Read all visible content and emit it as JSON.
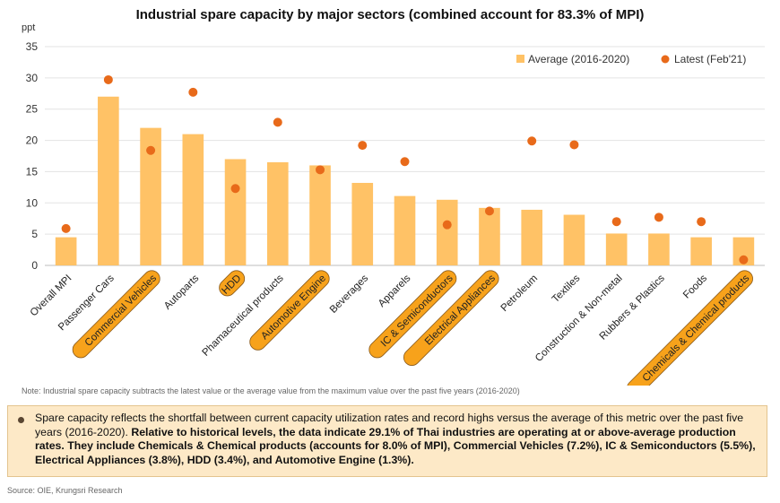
{
  "chart_data": {
    "type": "bar",
    "title": "Industrial spare capacity by major sectors (combined account for 83.3% of MPI)",
    "ylabel": "ppt",
    "ylim": [
      0,
      35
    ],
    "yticks": [
      0,
      5,
      10,
      15,
      20,
      25,
      30,
      35
    ],
    "legend_position": "top-right",
    "categories": [
      "Overall MPI",
      "Passenger Cars",
      "Commercial Vehicles",
      "Autoparts",
      "HDD",
      "Phamaceutical products",
      "Automotive Engine",
      "Beverages",
      "Apparels",
      "IC & Semiconductors",
      "Electrical Appliances",
      "Petroleum",
      "Textiles",
      "Construction & Non-metal",
      "Rubbers & Plastics",
      "Foods",
      "Chemicals & Chemical products"
    ],
    "highlighted": [
      false,
      false,
      true,
      false,
      true,
      false,
      true,
      false,
      false,
      true,
      true,
      false,
      false,
      false,
      false,
      false,
      true
    ],
    "series": [
      {
        "name": "Average (2016-2020)",
        "type": "bar",
        "color": "#ffc266",
        "values": [
          4.5,
          27.0,
          22.0,
          21.0,
          17.0,
          16.5,
          16.0,
          13.2,
          11.1,
          10.5,
          9.2,
          8.9,
          8.1,
          5.1,
          5.1,
          4.5,
          4.5
        ]
      },
      {
        "name": "Latest (Feb'21)",
        "type": "scatter",
        "color": "#e86a1a",
        "values": [
          5.9,
          29.7,
          18.4,
          27.7,
          12.3,
          22.9,
          15.3,
          19.2,
          16.6,
          6.5,
          8.7,
          19.9,
          19.3,
          7.0,
          7.7,
          7.0,
          0.9
        ]
      }
    ],
    "highlight_color": "#f7a21b"
  },
  "note": "Note: Industrial spare capacity subtracts the latest value or the average value from the maximum value over the past five years (2016-2020)",
  "summary": {
    "normal": "Spare capacity reflects the shortfall between current capacity utilization rates and record highs versus the average of this metric over the past five years (2016-2020).",
    "bold": "Relative to historical levels, the data indicate 29.1% of Thai industries are operating at or above-average production rates. They include Chemicals & Chemical products (accounts for 8.0% of MPI), Commercial Vehicles (7.2%), IC & Semiconductors (5.5%), Electrical Appliances (3.8%), HDD (3.4%), and Automotive Engine (1.3%)."
  },
  "source": "Source: OIE, Krungsri Research"
}
